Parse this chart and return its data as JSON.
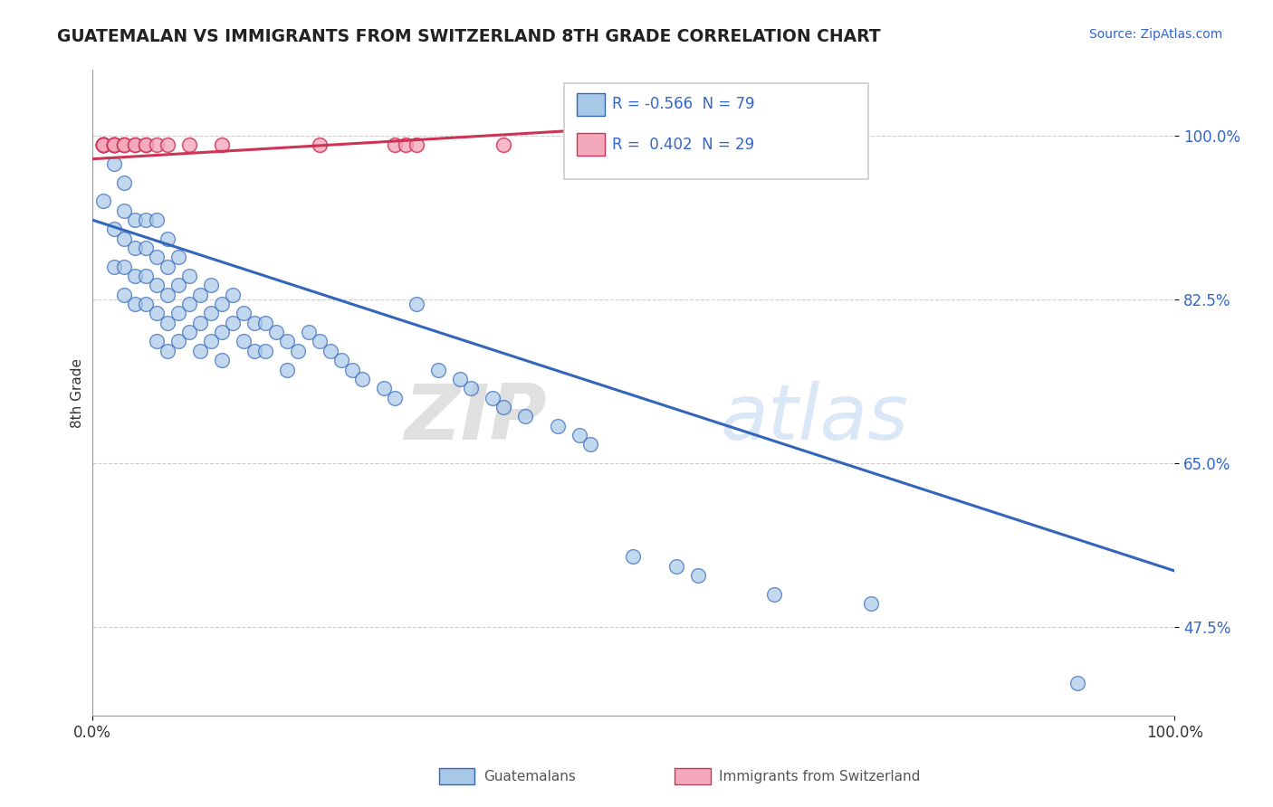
{
  "title": "GUATEMALAN VS IMMIGRANTS FROM SWITZERLAND 8TH GRADE CORRELATION CHART",
  "source_text": "Source: ZipAtlas.com",
  "ylabel": "8th Grade",
  "x_min": 0.0,
  "x_max": 1.0,
  "y_min": 0.38,
  "y_max": 1.07,
  "y_ticks": [
    1.0,
    0.825,
    0.65,
    0.475
  ],
  "y_tick_labels": [
    "100.0%",
    "82.5%",
    "65.0%",
    "47.5%"
  ],
  "x_ticks": [
    0.0,
    1.0
  ],
  "x_tick_labels": [
    "0.0%",
    "100.0%"
  ],
  "blue_R": "-0.566",
  "blue_N": "79",
  "pink_R": "0.402",
  "pink_N": "29",
  "legend_label_blue": "Guatemalans",
  "legend_label_pink": "Immigrants from Switzerland",
  "blue_color": "#a8c8e8",
  "pink_color": "#f4a8bc",
  "blue_line_color": "#3366bb",
  "pink_line_color": "#cc3355",
  "background_color": "#ffffff",
  "watermark_zip": "ZIP",
  "watermark_atlas": "atlas",
  "blue_scatter_x": [
    0.01,
    0.02,
    0.02,
    0.02,
    0.03,
    0.03,
    0.03,
    0.03,
    0.03,
    0.04,
    0.04,
    0.04,
    0.04,
    0.05,
    0.05,
    0.05,
    0.05,
    0.06,
    0.06,
    0.06,
    0.06,
    0.06,
    0.07,
    0.07,
    0.07,
    0.07,
    0.07,
    0.08,
    0.08,
    0.08,
    0.08,
    0.09,
    0.09,
    0.09,
    0.1,
    0.1,
    0.1,
    0.11,
    0.11,
    0.11,
    0.12,
    0.12,
    0.12,
    0.13,
    0.13,
    0.14,
    0.14,
    0.15,
    0.15,
    0.16,
    0.16,
    0.17,
    0.18,
    0.18,
    0.19,
    0.2,
    0.21,
    0.22,
    0.23,
    0.24,
    0.25,
    0.27,
    0.28,
    0.3,
    0.32,
    0.34,
    0.35,
    0.37,
    0.38,
    0.4,
    0.43,
    0.45,
    0.46,
    0.5,
    0.54,
    0.56,
    0.63,
    0.72,
    0.91
  ],
  "blue_scatter_y": [
    0.93,
    0.97,
    0.9,
    0.86,
    0.95,
    0.92,
    0.89,
    0.86,
    0.83,
    0.91,
    0.88,
    0.85,
    0.82,
    0.91,
    0.88,
    0.85,
    0.82,
    0.91,
    0.87,
    0.84,
    0.81,
    0.78,
    0.89,
    0.86,
    0.83,
    0.8,
    0.77,
    0.87,
    0.84,
    0.81,
    0.78,
    0.85,
    0.82,
    0.79,
    0.83,
    0.8,
    0.77,
    0.84,
    0.81,
    0.78,
    0.82,
    0.79,
    0.76,
    0.83,
    0.8,
    0.81,
    0.78,
    0.8,
    0.77,
    0.8,
    0.77,
    0.79,
    0.78,
    0.75,
    0.77,
    0.79,
    0.78,
    0.77,
    0.76,
    0.75,
    0.74,
    0.73,
    0.72,
    0.82,
    0.75,
    0.74,
    0.73,
    0.72,
    0.71,
    0.7,
    0.69,
    0.68,
    0.67,
    0.55,
    0.54,
    0.53,
    0.51,
    0.5,
    0.415
  ],
  "pink_scatter_x": [
    0.01,
    0.01,
    0.01,
    0.01,
    0.01,
    0.01,
    0.01,
    0.02,
    0.02,
    0.02,
    0.02,
    0.02,
    0.02,
    0.03,
    0.03,
    0.03,
    0.04,
    0.04,
    0.05,
    0.05,
    0.06,
    0.07,
    0.09,
    0.12,
    0.21,
    0.28,
    0.29,
    0.3,
    0.38
  ],
  "pink_scatter_y": [
    0.99,
    0.99,
    0.99,
    0.99,
    0.99,
    0.99,
    0.99,
    0.99,
    0.99,
    0.99,
    0.99,
    0.99,
    0.99,
    0.99,
    0.99,
    0.99,
    0.99,
    0.99,
    0.99,
    0.99,
    0.99,
    0.99,
    0.99,
    0.99,
    0.99,
    0.99,
    0.99,
    0.99,
    0.99
  ],
  "blue_trendline_x": [
    0.0,
    1.0
  ],
  "blue_trendline_y": [
    0.91,
    0.535
  ],
  "pink_trendline_x": [
    0.0,
    0.44
  ],
  "pink_trendline_y": [
    0.975,
    1.005
  ]
}
